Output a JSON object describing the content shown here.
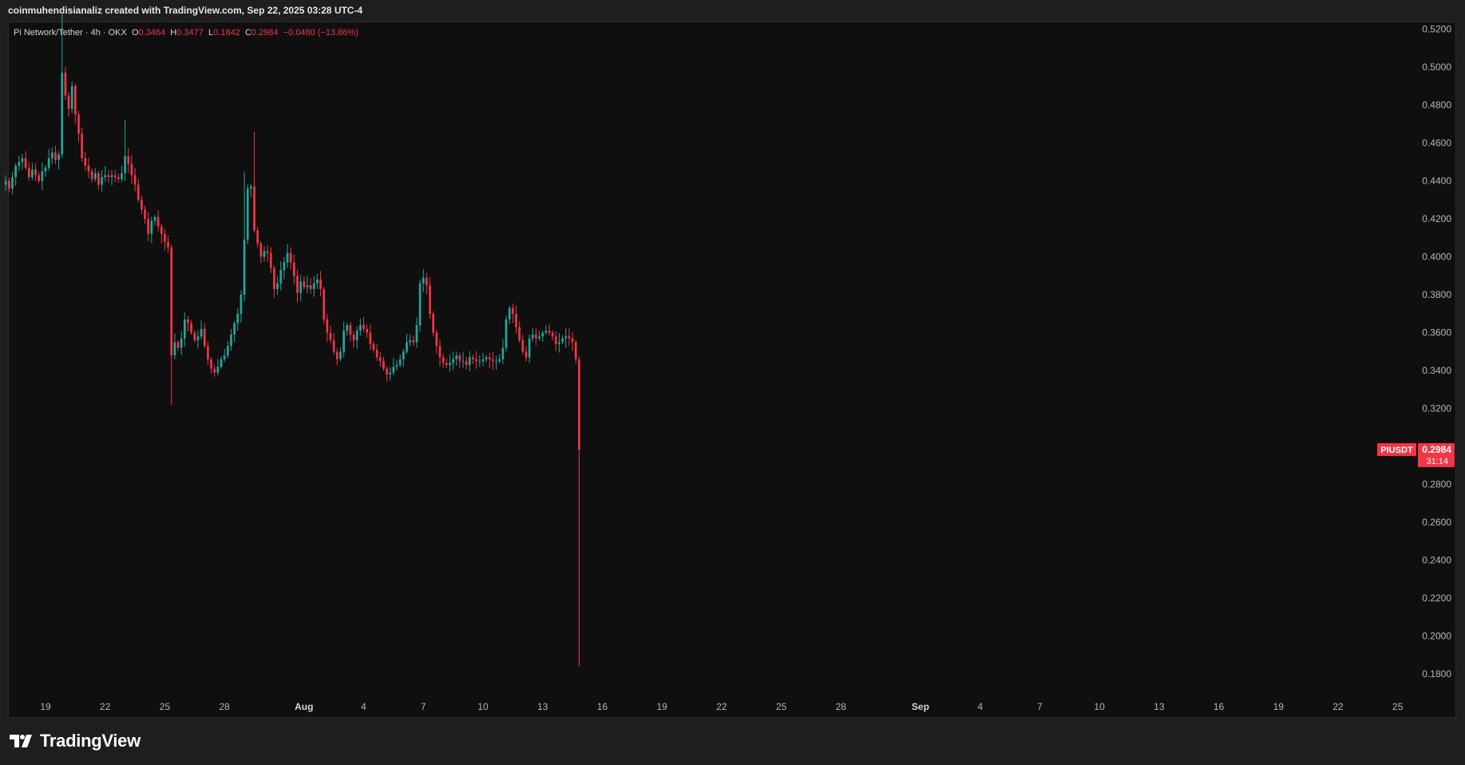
{
  "header": {
    "attribution": "coinmuhendisianaliz created with TradingView.com, Sep 22, 2025 03:28 UTC-4"
  },
  "legend": {
    "symbol": "Pi Network/Tether · 4h · OKX",
    "o_label": "O",
    "o_value": "0.3464",
    "h_label": "H",
    "h_value": "0.3477",
    "l_label": "L",
    "l_value": "0.1842",
    "c_label": "C",
    "c_value": "0.2984",
    "change": "−0.0480 (−13.86%)"
  },
  "price_tag": {
    "ticker": "PIUSDT",
    "price": "0.2984",
    "countdown": "31:14"
  },
  "footer": {
    "brand": "TradingView"
  },
  "colors": {
    "up": "#26a69a",
    "down": "#f23645",
    "background": "#0f0f0f",
    "frame": "#1e1e1e"
  },
  "chart_data": {
    "type": "candlestick",
    "y_axis": {
      "min": 0.17,
      "max": 0.524,
      "ticks": [
        "0.5200",
        "0.5000",
        "0.4800",
        "0.4600",
        "0.4400",
        "0.4200",
        "0.4000",
        "0.3800",
        "0.3600",
        "0.3400",
        "0.3200",
        "0.2800",
        "0.2600",
        "0.2400",
        "0.2200",
        "0.2000",
        "0.1800"
      ]
    },
    "x_axis": {
      "labels": [
        {
          "text": "19",
          "day": 19,
          "bold": false
        },
        {
          "text": "22",
          "day": 22,
          "bold": false
        },
        {
          "text": "25",
          "day": 25,
          "bold": false
        },
        {
          "text": "28",
          "day": 28,
          "bold": false
        },
        {
          "text": "Aug",
          "day": 32,
          "bold": true
        },
        {
          "text": "4",
          "day": 35,
          "bold": false
        },
        {
          "text": "7",
          "day": 38,
          "bold": false
        },
        {
          "text": "10",
          "day": 41,
          "bold": false
        },
        {
          "text": "13",
          "day": 44,
          "bold": false
        },
        {
          "text": "16",
          "day": 47,
          "bold": false
        },
        {
          "text": "19",
          "day": 50,
          "bold": false
        },
        {
          "text": "22",
          "day": 53,
          "bold": false
        },
        {
          "text": "25",
          "day": 56,
          "bold": false
        },
        {
          "text": "28",
          "day": 59,
          "bold": false
        },
        {
          "text": "Sep",
          "day": 63,
          "bold": true
        },
        {
          "text": "4",
          "day": 66,
          "bold": false
        },
        {
          "text": "7",
          "day": 69,
          "bold": false
        },
        {
          "text": "10",
          "day": 72,
          "bold": false
        },
        {
          "text": "13",
          "day": 75,
          "bold": false
        },
        {
          "text": "16",
          "day": 78,
          "bold": false
        },
        {
          "text": "19",
          "day": 81,
          "bold": false
        },
        {
          "text": "22",
          "day": 84,
          "bold": false
        },
        {
          "text": "25",
          "day": 87,
          "bold": false
        }
      ]
    },
    "interval_hours": 4,
    "start_day": 17.0,
    "closes": [
      0.44,
      0.436,
      0.442,
      0.448,
      0.45,
      0.452,
      0.447,
      0.442,
      0.446,
      0.443,
      0.44,
      0.445,
      0.447,
      0.452,
      0.455,
      0.451,
      0.454,
      0.497,
      0.485,
      0.478,
      0.49,
      0.475,
      0.465,
      0.452,
      0.448,
      0.445,
      0.441,
      0.444,
      0.438,
      0.442,
      0.443,
      0.442,
      0.443,
      0.442,
      0.441,
      0.444,
      0.453,
      0.449,
      0.443,
      0.438,
      0.43,
      0.425,
      0.42,
      0.412,
      0.419,
      0.421,
      0.416,
      0.412,
      0.408,
      0.405,
      0.348,
      0.355,
      0.352,
      0.357,
      0.367,
      0.365,
      0.36,
      0.356,
      0.358,
      0.362,
      0.353,
      0.346,
      0.341,
      0.339,
      0.342,
      0.346,
      0.348,
      0.353,
      0.359,
      0.365,
      0.37,
      0.38,
      0.409,
      0.436,
      0.437,
      0.414,
      0.407,
      0.4,
      0.403,
      0.402,
      0.394,
      0.383,
      0.386,
      0.393,
      0.397,
      0.402,
      0.397,
      0.39,
      0.381,
      0.387,
      0.384,
      0.385,
      0.383,
      0.386,
      0.388,
      0.383,
      0.367,
      0.36,
      0.356,
      0.35,
      0.346,
      0.35,
      0.361,
      0.364,
      0.359,
      0.356,
      0.361,
      0.364,
      0.362,
      0.36,
      0.354,
      0.351,
      0.347,
      0.345,
      0.341,
      0.338,
      0.339,
      0.342,
      0.343,
      0.346,
      0.35,
      0.355,
      0.356,
      0.355,
      0.364,
      0.386,
      0.389,
      0.385,
      0.37,
      0.36,
      0.353,
      0.347,
      0.344,
      0.343,
      0.344,
      0.346,
      0.348,
      0.345,
      0.345,
      0.343,
      0.347,
      0.346,
      0.345,
      0.345,
      0.346,
      0.347,
      0.346,
      0.345,
      0.345,
      0.346,
      0.352,
      0.367,
      0.373,
      0.37,
      0.363,
      0.356,
      0.35,
      0.347,
      0.357,
      0.359,
      0.357,
      0.358,
      0.36,
      0.361,
      0.36,
      0.358,
      0.354,
      0.355,
      0.357,
      0.358,
      0.357,
      0.355,
      0.346,
      0.2984
    ]
  }
}
